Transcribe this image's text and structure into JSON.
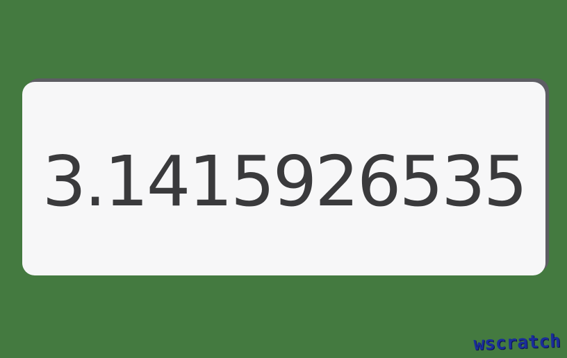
{
  "display": {
    "value": "3.1415926535"
  },
  "watermark": {
    "text": "wscratch"
  },
  "colors": {
    "background": "#447a40",
    "card": "#f7f7f8",
    "card_shadow": "#5d5d63",
    "text": "#3a3a3c",
    "watermark": "#1a2d9a"
  }
}
